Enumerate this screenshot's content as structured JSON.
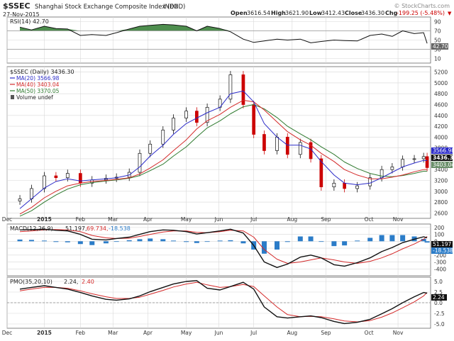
{
  "header": {
    "symbol": "$SSEC",
    "name": "Shanghai Stock Exchange Composite Index (EOD)",
    "exchange": "INDX",
    "date": "27-Nov-2015",
    "open_label": "Open",
    "open": "3616.54",
    "high_label": "High",
    "high": "3621.90",
    "low_label": "Low",
    "low": "3412.43",
    "close_label": "Close",
    "close": "3436.30",
    "chg_label": "Chg",
    "chg": "-199.25 (-5.48%)",
    "change_arrow": "▼",
    "watermark": "© StockCharts.com"
  },
  "colors": {
    "price_up": "#111111",
    "price_down": "#cc0000",
    "ma20": "#2b2bc8",
    "ma40": "#d42a2a",
    "ma50": "#2f7a2f",
    "rsi_fill": "#2f7a2f",
    "macd_hist": "#2b7cc8",
    "signal": "#d42a2a"
  },
  "legend": {
    "price": "$SSEC (Daily) 3436.30",
    "ma20": "MA(20) 3566.98",
    "ma40": "MA(40) 3403.04",
    "ma50": "MA(50) 3370.05",
    "volume": "Volume undef",
    "rsi": "RSI(14) 42.70",
    "macd_prefix": "MACD(12,26,9)",
    "macd_val": "51.197,",
    "macd_sig": "69.734,",
    "macd_hist": "-18.538",
    "pmo_prefix": "PMO(35,20,10)",
    "pmo_val": "2.24,",
    "pmo_sig": "2.40"
  },
  "right_labels": {
    "rsi_value": "42.70",
    "ma20": "3566.98",
    "close": "3436.30",
    "ma_other": "3403.04",
    "macd_line": "51.197",
    "macd_hist": "-18.538",
    "pmo": "2.24"
  },
  "chart_data": [
    {
      "type": "line",
      "title": "RSI(14)",
      "ylim": [
        0,
        100
      ],
      "yticks": [
        "90",
        "70",
        "50",
        "30",
        "10"
      ],
      "dates": [
        "2014-12-12",
        "2014-12-22",
        "2015-01-02",
        "2015-01-12",
        "2015-01-22",
        "2015-02-02",
        "2015-02-12",
        "2015-02-24",
        "2015-03-05",
        "2015-03-16",
        "2015-03-25",
        "2015-04-03",
        "2015-04-14",
        "2015-04-23",
        "2015-05-04",
        "2015-05-13",
        "2015-05-22",
        "2015-06-02",
        "2015-06-11",
        "2015-06-22",
        "2015-07-01",
        "2015-07-10",
        "2015-07-21",
        "2015-07-30",
        "2015-08-10",
        "2015-08-19",
        "2015-08-28",
        "2015-09-08",
        "2015-09-17",
        "2015-09-28",
        "2015-10-09",
        "2015-10-19",
        "2015-10-28",
        "2015-11-06",
        "2015-11-16",
        "2015-11-24",
        "2015-11-27"
      ],
      "values": [
        78,
        72,
        80,
        75,
        74,
        60,
        62,
        60,
        66,
        74,
        80,
        82,
        84,
        83,
        80,
        70,
        80,
        75,
        68,
        52,
        45,
        48,
        52,
        50,
        52,
        44,
        47,
        50,
        49,
        48,
        60,
        63,
        58,
        70,
        64,
        66,
        42.7
      ]
    },
    {
      "type": "line",
      "title": "$SSEC (Daily) 3436.30",
      "ylim": [
        2500,
        5300
      ],
      "yticks": [
        "5200",
        "5000",
        "4800",
        "4600",
        "4400",
        "4200",
        "4000",
        "3800",
        "3600",
        "3400",
        "3200",
        "3000",
        "2800",
        "2600"
      ],
      "series": [
        {
          "name": "Close",
          "values": [
            2860,
            3050,
            3285,
            3250,
            3330,
            3150,
            3210,
            3240,
            3260,
            3350,
            3700,
            3870,
            4130,
            4350,
            4480,
            4270,
            4550,
            4700,
            5150,
            4600,
            4050,
            3750,
            4000,
            3680,
            3900,
            3600,
            3080,
            3150,
            3050,
            3100,
            3250,
            3400,
            3450,
            3590,
            3600,
            3640,
            3436.3
          ]
        },
        {
          "name": "MA(20)",
          "values": [
            2680,
            2860,
            3060,
            3180,
            3230,
            3190,
            3210,
            3230,
            3250,
            3300,
            3450,
            3650,
            3850,
            4050,
            4250,
            4350,
            4450,
            4550,
            4800,
            4850,
            4650,
            4250,
            4000,
            3850,
            3850,
            3780,
            3550,
            3300,
            3150,
            3120,
            3150,
            3250,
            3350,
            3450,
            3520,
            3570,
            3566.98
          ]
        },
        {
          "name": "MA(40)",
          "values": [
            2580,
            2700,
            2880,
            3000,
            3100,
            3150,
            3180,
            3200,
            3220,
            3250,
            3320,
            3430,
            3580,
            3750,
            3950,
            4150,
            4300,
            4420,
            4550,
            4680,
            4650,
            4500,
            4280,
            4100,
            3950,
            3850,
            3700,
            3550,
            3400,
            3300,
            3230,
            3230,
            3260,
            3300,
            3360,
            3400,
            3403.04
          ]
        },
        {
          "name": "MA(50)",
          "values": [
            2540,
            2640,
            2800,
            2930,
            3040,
            3120,
            3160,
            3190,
            3210,
            3240,
            3290,
            3380,
            3500,
            3650,
            3820,
            4000,
            4170,
            4300,
            4430,
            4560,
            4600,
            4520,
            4360,
            4200,
            4060,
            3950,
            3820,
            3680,
            3540,
            3420,
            3330,
            3280,
            3270,
            3290,
            3330,
            3370,
            3370.05
          ]
        }
      ]
    },
    {
      "type": "line",
      "title": "MACD(12,26,9)",
      "ylim": [
        -500,
        250
      ],
      "yticks": [
        "200",
        "100",
        "0",
        "-100",
        "-200",
        "-300",
        "-400"
      ],
      "series": [
        {
          "name": "MACD",
          "values": [
            165,
            170,
            175,
            160,
            150,
            100,
            30,
            20,
            40,
            60,
            100,
            140,
            165,
            160,
            140,
            105,
            125,
            150,
            175,
            120,
            -60,
            -300,
            -380,
            -330,
            -230,
            -200,
            -240,
            -340,
            -360,
            -310,
            -240,
            -150,
            -90,
            -20,
            30,
            65,
            51.197
          ]
        },
        {
          "name": "Signal",
          "values": [
            140,
            150,
            165,
            170,
            165,
            140,
            85,
            50,
            40,
            45,
            70,
            100,
            135,
            150,
            150,
            130,
            125,
            140,
            160,
            150,
            60,
            -120,
            -260,
            -320,
            -300,
            -270,
            -240,
            -270,
            -300,
            -320,
            -290,
            -240,
            -180,
            -110,
            -40,
            30,
            69.734
          ]
        },
        {
          "name": "Histogram",
          "values": [
            25,
            20,
            10,
            -10,
            -15,
            -40,
            -55,
            -30,
            0,
            15,
            30,
            40,
            30,
            10,
            -10,
            -25,
            0,
            10,
            15,
            -30,
            -120,
            -180,
            -120,
            -10,
            70,
            70,
            0,
            -70,
            -60,
            10,
            50,
            90,
            90,
            90,
            70,
            35,
            -18.538
          ]
        }
      ]
    },
    {
      "type": "line",
      "title": "PMO(35,20,10)",
      "ylim": [
        -6.0,
        6.0
      ],
      "yticks": [
        "5.0",
        "2.5",
        "0.0",
        "-2.5",
        "-5.0"
      ],
      "series": [
        {
          "name": "PMO",
          "values": [
            3.2,
            3.6,
            4.0,
            3.6,
            3.2,
            2.4,
            1.6,
            0.8,
            0.6,
            0.9,
            1.6,
            2.6,
            3.6,
            4.4,
            5.0,
            5.2,
            3.4,
            3.0,
            3.8,
            4.8,
            3.2,
            -1.0,
            -3.3,
            -3.6,
            -3.3,
            -3.1,
            -3.5,
            -4.4,
            -4.9,
            -4.6,
            -3.9,
            -2.6,
            -1.4,
            0.0,
            1.4,
            2.4,
            2.24
          ]
        },
        {
          "name": "Signal",
          "values": [
            2.8,
            3.2,
            3.6,
            3.6,
            3.4,
            2.8,
            2.1,
            1.4,
            1.0,
            1.0,
            1.3,
            2.0,
            2.9,
            3.7,
            4.4,
            4.8,
            4.2,
            3.6,
            3.8,
            4.3,
            3.8,
            1.6,
            -1.0,
            -2.8,
            -3.3,
            -3.2,
            -3.3,
            -3.8,
            -4.3,
            -4.5,
            -4.2,
            -3.4,
            -2.4,
            -1.2,
            0.2,
            1.6,
            2.4
          ]
        }
      ]
    }
  ],
  "xaxis": {
    "labels": [
      "Dec",
      "2015",
      "Feb",
      "Mar",
      "Apr",
      "May",
      "Jun",
      "Jul",
      "Aug",
      "Sep",
      "Oct",
      "Nov"
    ],
    "label_dates": [
      "2014-12-01",
      "2015-01-02",
      "2015-02-02",
      "2015-03-02",
      "2015-04-01",
      "2015-05-04",
      "2015-06-01",
      "2015-07-01",
      "2015-08-03",
      "2015-09-01",
      "2015-10-08",
      "2015-11-02"
    ],
    "start": "2014-12-01",
    "end": "2015-11-30"
  }
}
